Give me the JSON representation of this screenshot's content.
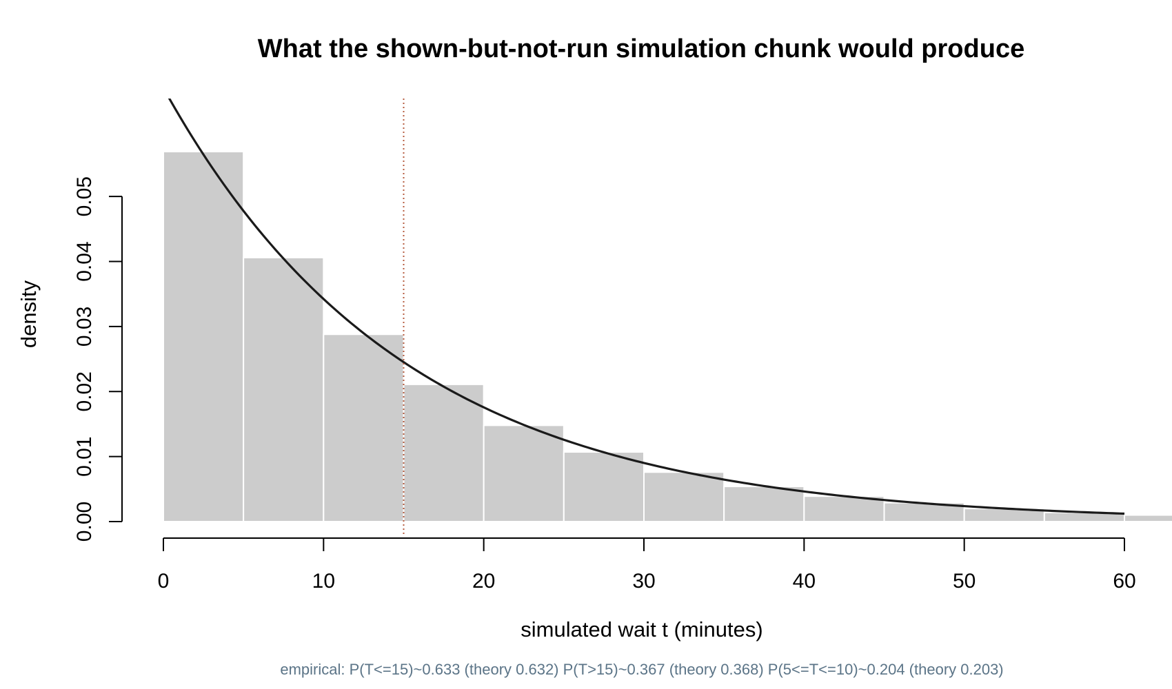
{
  "chart_data": {
    "type": "bar",
    "title": "What the shown-but-not-run simulation chunk would produce",
    "xlabel": "simulated wait t (minutes)",
    "ylabel": "density",
    "footnote": "empirical: P(T<=15)~0.633 (theory 0.632)  P(T>15)~0.367 (theory 0.368)  P(5<=T<=10)~0.204 (theory 0.203)",
    "xlim": [
      0,
      60
    ],
    "ylim": [
      0,
      0.055
    ],
    "x_ticks": [
      "0",
      "10",
      "20",
      "30",
      "40",
      "50",
      "60"
    ],
    "y_ticks": [
      "0.00",
      "0.01",
      "0.02",
      "0.03",
      "0.04",
      "0.05"
    ],
    "histogram": {
      "bin_edges": [
        0,
        5,
        10,
        15,
        20,
        25,
        30,
        35,
        40,
        45,
        50,
        55,
        60,
        65
      ],
      "density": [
        0.0569,
        0.0406,
        0.0288,
        0.0211,
        0.0148,
        0.0107,
        0.0076,
        0.0054,
        0.0039,
        0.0029,
        0.002,
        0.0014,
        0.001
      ],
      "color": "#cccccc"
    },
    "density_curve": {
      "type": "line",
      "distribution": "exponential",
      "rate": 0.0667,
      "x_range": [
        0,
        60
      ],
      "color": "#1a1a1a"
    },
    "reference_line": {
      "x": 15,
      "style": "dotted",
      "color": "#b55a3c"
    },
    "grid": false,
    "legend": "none"
  }
}
